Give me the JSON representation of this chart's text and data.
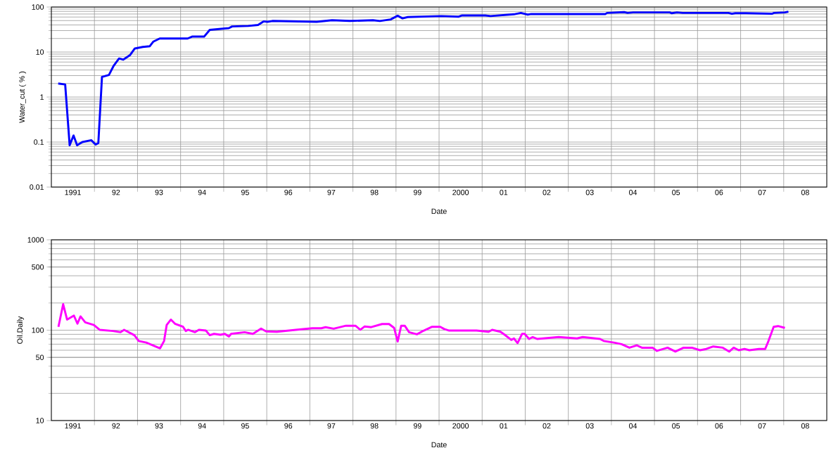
{
  "chart_data": [
    {
      "type": "line",
      "xlabel": "Date",
      "ylabel": "Water_cut ( % )",
      "log": true,
      "grid": true,
      "xlim": [
        "1991-01-01",
        "2009-01-01"
      ],
      "xticks": [
        {
          "value": "1991-07-02",
          "label": "1991"
        },
        {
          "value": "1992-07-02",
          "label": "92"
        },
        {
          "value": "1993-07-02",
          "label": "93"
        },
        {
          "value": "1994-07-02",
          "label": "94"
        },
        {
          "value": "1995-07-02",
          "label": "95"
        },
        {
          "value": "1996-07-02",
          "label": "96"
        },
        {
          "value": "1997-07-02",
          "label": "97"
        },
        {
          "value": "1998-07-02",
          "label": "98"
        },
        {
          "value": "1999-07-02",
          "label": "99"
        },
        {
          "value": "2000-07-02",
          "label": "2000"
        },
        {
          "value": "2001-07-02",
          "label": "01"
        },
        {
          "value": "2002-07-02",
          "label": "02"
        },
        {
          "value": "2003-07-02",
          "label": "03"
        },
        {
          "value": "2004-07-02",
          "label": "04"
        },
        {
          "value": "2005-07-02",
          "label": "05"
        },
        {
          "value": "2006-07-02",
          "label": "06"
        },
        {
          "value": "2007-07-02",
          "label": "07"
        },
        {
          "value": "2008-07-02",
          "label": "08"
        },
        {
          "value": "1992-01-01",
          "label": null
        },
        {
          "value": "1993-01-01",
          "label": null
        },
        {
          "value": "1994-01-01",
          "label": null
        },
        {
          "value": "1995-01-01",
          "label": null
        },
        {
          "value": "1996-01-01",
          "label": null
        },
        {
          "value": "1997-01-01",
          "label": null
        },
        {
          "value": "1998-01-01",
          "label": null
        },
        {
          "value": "1999-01-01",
          "label": null
        },
        {
          "value": "2000-01-01",
          "label": null
        },
        {
          "value": "2001-01-01",
          "label": null
        },
        {
          "value": "2002-01-01",
          "label": null
        },
        {
          "value": "2003-01-01",
          "label": null
        },
        {
          "value": "2004-01-01",
          "label": null
        },
        {
          "value": "2005-01-01",
          "label": null
        },
        {
          "value": "2006-01-01",
          "label": null
        },
        {
          "value": "2007-01-01",
          "label": null
        },
        {
          "value": "2008-01-01",
          "label": null
        }
      ],
      "ylim": [
        0.01,
        100
      ],
      "yticks": [
        0.01,
        0.1,
        1,
        10,
        100
      ],
      "x": [
        "1991-02-28",
        "1991-04-28",
        "1991-06-05",
        "1991-07-08",
        "1991-08-07",
        "1991-09-20",
        "1991-12-05",
        "1992-01-11",
        "1992-02-03",
        "1992-03-05",
        "1992-05-03",
        "1992-06-13",
        "1992-07-28",
        "1992-09-02",
        "1992-10-28",
        "1992-12-09",
        "1993-02-14",
        "1993-04-15",
        "1993-05-14",
        "1993-07-08",
        "1994-03-02",
        "1994-04-08",
        "1994-07-19",
        "1994-09-05",
        "1994-12-27",
        "1995-02-14",
        "1995-03-13",
        "1995-07-28",
        "1995-10-19",
        "1995-12-05",
        "1996-01-08",
        "1996-02-17",
        "1997-02-28",
        "1997-07-08",
        "1997-12-05",
        "1998-06-20",
        "1998-08-17",
        "1998-11-17",
        "1999-01-15",
        "1999-02-25",
        "1999-04-11",
        "2000-01-19",
        "2000-06-16",
        "2000-07-15",
        "2001-01-28",
        "2001-03-13",
        "2001-09-27",
        "2001-11-25",
        "2002-01-22",
        "2002-02-21",
        "2003-11-10",
        "2003-11-25",
        "2004-04-19",
        "2004-05-17",
        "2004-07-04",
        "2005-05-10",
        "2005-05-28",
        "2005-07-11",
        "2005-08-28",
        "2006-09-20",
        "2006-10-19",
        "2006-11-17",
        "2007-02-17",
        "2007-09-23",
        "2007-10-11",
        "2008-01-11",
        "2008-02-10"
      ],
      "series": [
        {
          "color": "#0000ff",
          "values": [
            2.0,
            1.9,
            0.085,
            0.14,
            0.085,
            0.1,
            0.11,
            0.088,
            0.095,
            2.8,
            3.1,
            5,
            7.2,
            6.8,
            8.5,
            12,
            13,
            13.5,
            17,
            20,
            20,
            22,
            22,
            31,
            33,
            34,
            37,
            38,
            40,
            48,
            47,
            49,
            47,
            51,
            49,
            51,
            49,
            53,
            64,
            56,
            60,
            63,
            61,
            65,
            65,
            63,
            69,
            74,
            68,
            70,
            70,
            74,
            77,
            74,
            76,
            76,
            73,
            76,
            74,
            74,
            71,
            73,
            73,
            71,
            74,
            76,
            79
          ]
        }
      ]
    },
    {
      "type": "line",
      "xlabel": "Date",
      "ylabel": "Oil.Daily",
      "log": true,
      "grid": true,
      "xlim": [
        "1991-01-01",
        "2009-01-01"
      ],
      "xticks": [
        {
          "value": "1991-07-02",
          "label": "1991"
        },
        {
          "value": "1992-07-02",
          "label": "92"
        },
        {
          "value": "1993-07-02",
          "label": "93"
        },
        {
          "value": "1994-07-02",
          "label": "94"
        },
        {
          "value": "1995-07-02",
          "label": "95"
        },
        {
          "value": "1996-07-02",
          "label": "96"
        },
        {
          "value": "1997-07-02",
          "label": "97"
        },
        {
          "value": "1998-07-02",
          "label": "98"
        },
        {
          "value": "1999-07-02",
          "label": "99"
        },
        {
          "value": "2000-07-02",
          "label": "2000"
        },
        {
          "value": "2001-07-02",
          "label": "01"
        },
        {
          "value": "2002-07-02",
          "label": "02"
        },
        {
          "value": "2003-07-02",
          "label": "03"
        },
        {
          "value": "2004-07-02",
          "label": "04"
        },
        {
          "value": "2005-07-02",
          "label": "05"
        },
        {
          "value": "2006-07-02",
          "label": "06"
        },
        {
          "value": "2007-07-02",
          "label": "07"
        },
        {
          "value": "2008-07-02",
          "label": "08"
        },
        {
          "value": "1992-01-01",
          "label": null
        },
        {
          "value": "1993-01-01",
          "label": null
        },
        {
          "value": "1994-01-01",
          "label": null
        },
        {
          "value": "1995-01-01",
          "label": null
        },
        {
          "value": "1996-01-01",
          "label": null
        },
        {
          "value": "1997-01-01",
          "label": null
        },
        {
          "value": "1998-01-01",
          "label": null
        },
        {
          "value": "1999-01-01",
          "label": null
        },
        {
          "value": "2000-01-01",
          "label": null
        },
        {
          "value": "2001-01-01",
          "label": null
        },
        {
          "value": "2002-01-01",
          "label": null
        },
        {
          "value": "2003-01-01",
          "label": null
        },
        {
          "value": "2004-01-01",
          "label": null
        },
        {
          "value": "2005-01-01",
          "label": null
        },
        {
          "value": "2006-01-01",
          "label": null
        },
        {
          "value": "2007-01-01",
          "label": null
        },
        {
          "value": "2008-01-01",
          "label": null
        }
      ],
      "ylim": [
        10,
        1000
      ],
      "yticks": [
        10,
        50,
        100,
        500,
        1000
      ],
      "x": [
        "1991-03-02",
        "1991-04-11",
        "1991-05-14",
        "1991-07-11",
        "1991-08-10",
        "1991-09-05",
        "1991-10-15",
        "1991-12-27",
        "1992-02-14",
        "1992-06-05",
        "1992-08-10",
        "1992-09-09",
        "1992-12-05",
        "1993-01-11",
        "1993-03-16",
        "1993-07-11",
        "1993-08-14",
        "1993-09-05",
        "1993-10-11",
        "1993-11-14",
        "1994-01-22",
        "1994-02-14",
        "1994-03-05",
        "1994-05-03",
        "1994-06-05",
        "1994-08-03",
        "1994-09-05",
        "1994-10-11",
        "1994-12-05",
        "1995-01-11",
        "1995-02-14",
        "1995-03-05",
        "1995-06-27",
        "1995-09-05",
        "1995-11-14",
        "1995-12-27",
        "1996-03-27",
        "1996-09-05",
        "1997-01-22",
        "1997-04-08",
        "1997-05-14",
        "1997-07-22",
        "1997-11-03",
        "1998-01-22",
        "1998-03-05",
        "1998-04-11",
        "1998-06-05",
        "1998-09-05",
        "1998-11-03",
        "1998-12-16",
        "1999-01-15",
        "1999-02-14",
        "1999-03-16",
        "1999-04-22",
        "1999-06-27",
        "1999-08-25",
        "1999-11-03",
        "2000-01-11",
        "2000-02-14",
        "2000-03-27",
        "2000-11-14",
        "2001-02-25",
        "2001-03-27",
        "2001-06-05",
        "2001-07-11",
        "2001-09-05",
        "2001-09-27",
        "2001-10-28",
        "2001-12-05",
        "2001-12-27",
        "2002-02-03",
        "2002-03-05",
        "2002-04-11",
        "2002-07-22",
        "2002-10-11",
        "2003-03-16",
        "2003-05-03",
        "2003-09-27",
        "2003-10-28",
        "2004-01-22",
        "2004-03-27",
        "2004-06-02",
        "2004-08-03",
        "2004-09-16",
        "2004-12-16",
        "2005-01-22",
        "2005-04-22",
        "2005-06-27",
        "2005-09-05",
        "2005-11-14",
        "2006-01-22",
        "2006-03-16",
        "2006-05-14",
        "2006-08-03",
        "2006-09-27",
        "2006-11-03",
        "2006-12-16",
        "2007-02-03",
        "2007-03-16",
        "2007-06-05",
        "2007-07-28",
        "2007-08-25",
        "2007-10-08",
        "2007-11-14",
        "2008-01-11"
      ],
      "series": [
        {
          "color": "#ff00ff",
          "values": [
            109,
            194,
            131,
            145,
            118,
            142,
            122,
            114,
            101,
            98,
            95,
            101,
            88,
            76,
            73,
            63,
            76,
            114,
            131,
            118,
            109,
            98,
            101,
            95,
            101,
            99,
            88,
            91,
            89,
            91,
            85,
            91,
            95,
            91,
            104,
            97,
            96,
            101,
            105,
            105,
            108,
            104,
            112,
            112,
            101,
            110,
            108,
            117,
            117,
            106,
            75,
            112,
            112,
            95,
            90,
            99,
            109,
            109,
            103,
            99,
            99,
            96,
            101,
            96,
            89,
            78,
            81,
            72,
            91,
            91,
            80,
            84,
            80,
            82,
            84,
            81,
            84,
            80,
            76,
            73,
            70,
            64,
            68,
            64,
            64,
            59,
            64,
            58,
            64,
            64,
            60,
            62,
            66,
            64,
            58,
            64,
            60,
            62,
            60,
            62,
            62,
            76,
            109,
            111,
            106
          ]
        }
      ]
    }
  ]
}
